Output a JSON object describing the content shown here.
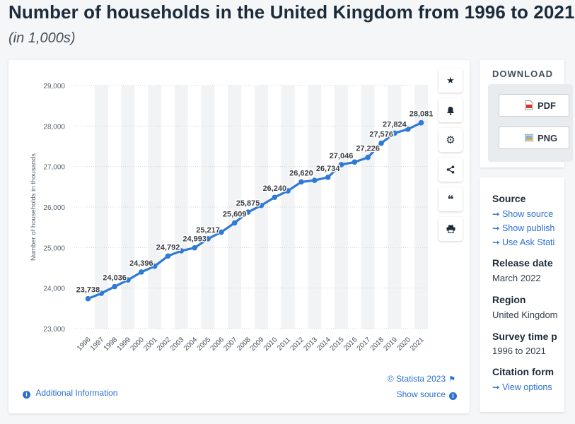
{
  "header": {
    "title": "Number of households in the United Kingdom from 1996 to 2021",
    "subtitle": "(in 1,000s)"
  },
  "chart_data": {
    "type": "line",
    "ylabel": "Number of households in thousands",
    "xlabel": "",
    "ylim": [
      23000,
      29000
    ],
    "yticks": [
      23000,
      24000,
      25000,
      26000,
      27000,
      28000,
      29000
    ],
    "ytick_labels": [
      "23,000",
      "24,000",
      "25,000",
      "26,000",
      "27,000",
      "28,000",
      "29,000"
    ],
    "grid": true,
    "line_color": "#2f7ad3",
    "x": [
      "1996",
      "1997",
      "1998",
      "1999",
      "2000",
      "2001",
      "2002",
      "2003",
      "2004",
      "2005",
      "2006",
      "2007",
      "2008",
      "2009",
      "2010",
      "2011",
      "2012",
      "2013",
      "2014",
      "2015",
      "2016",
      "2017",
      "2018",
      "2019",
      "2020",
      "2021"
    ],
    "values": [
      23738,
      23870,
      24036,
      24200,
      24396,
      24540,
      24792,
      24920,
      24993,
      25217,
      25380,
      25609,
      25875,
      26040,
      26240,
      26400,
      26620,
      26660,
      26734,
      27046,
      27110,
      27226,
      27576,
      27824,
      27920,
      28081
    ],
    "data_labels": [
      {
        "x": "1996",
        "text": "23,738"
      },
      {
        "x": "1998",
        "text": "24,036"
      },
      {
        "x": "2000",
        "text": "24,396"
      },
      {
        "x": "2002",
        "text": "24,792"
      },
      {
        "x": "2004",
        "text": "24,993"
      },
      {
        "x": "2005",
        "text": "25,217"
      },
      {
        "x": "2007",
        "text": "25,609"
      },
      {
        "x": "2008",
        "text": "25,875"
      },
      {
        "x": "2010",
        "text": "26,240"
      },
      {
        "x": "2012",
        "text": "26,620"
      },
      {
        "x": "2014",
        "text": "26,734"
      },
      {
        "x": "2015",
        "text": "27,046"
      },
      {
        "x": "2017",
        "text": "27,226"
      },
      {
        "x": "2018",
        "text": "27,576"
      },
      {
        "x": "2019",
        "text": "27,824"
      },
      {
        "x": "2021",
        "text": "28,081"
      }
    ]
  },
  "chart_footer": {
    "copyright": "© Statista 2023",
    "additional_info": "Additional Information",
    "show_source": "Show source"
  },
  "tools": [
    {
      "name": "favorite",
      "glyph": "★"
    },
    {
      "name": "notification",
      "glyph": "🔔"
    },
    {
      "name": "settings",
      "glyph": "⚙"
    },
    {
      "name": "share",
      "glyph": "<"
    },
    {
      "name": "cite",
      "glyph": "❝"
    },
    {
      "name": "print",
      "glyph": "⎙"
    }
  ],
  "download": {
    "heading": "DOWNLOAD",
    "pdf_label": "PDF",
    "png_label": "PNG"
  },
  "source_panel": {
    "source_heading": "Source",
    "links": [
      "Show source",
      "Show publish",
      "Use Ask Stati"
    ],
    "release_heading": "Release date",
    "release_value": "March 2022",
    "region_heading": "Region",
    "region_value": "United Kingdom",
    "survey_heading": "Survey time p",
    "survey_value": "1996 to 2021",
    "citation_heading": "Citation form",
    "citation_link": "View options"
  }
}
